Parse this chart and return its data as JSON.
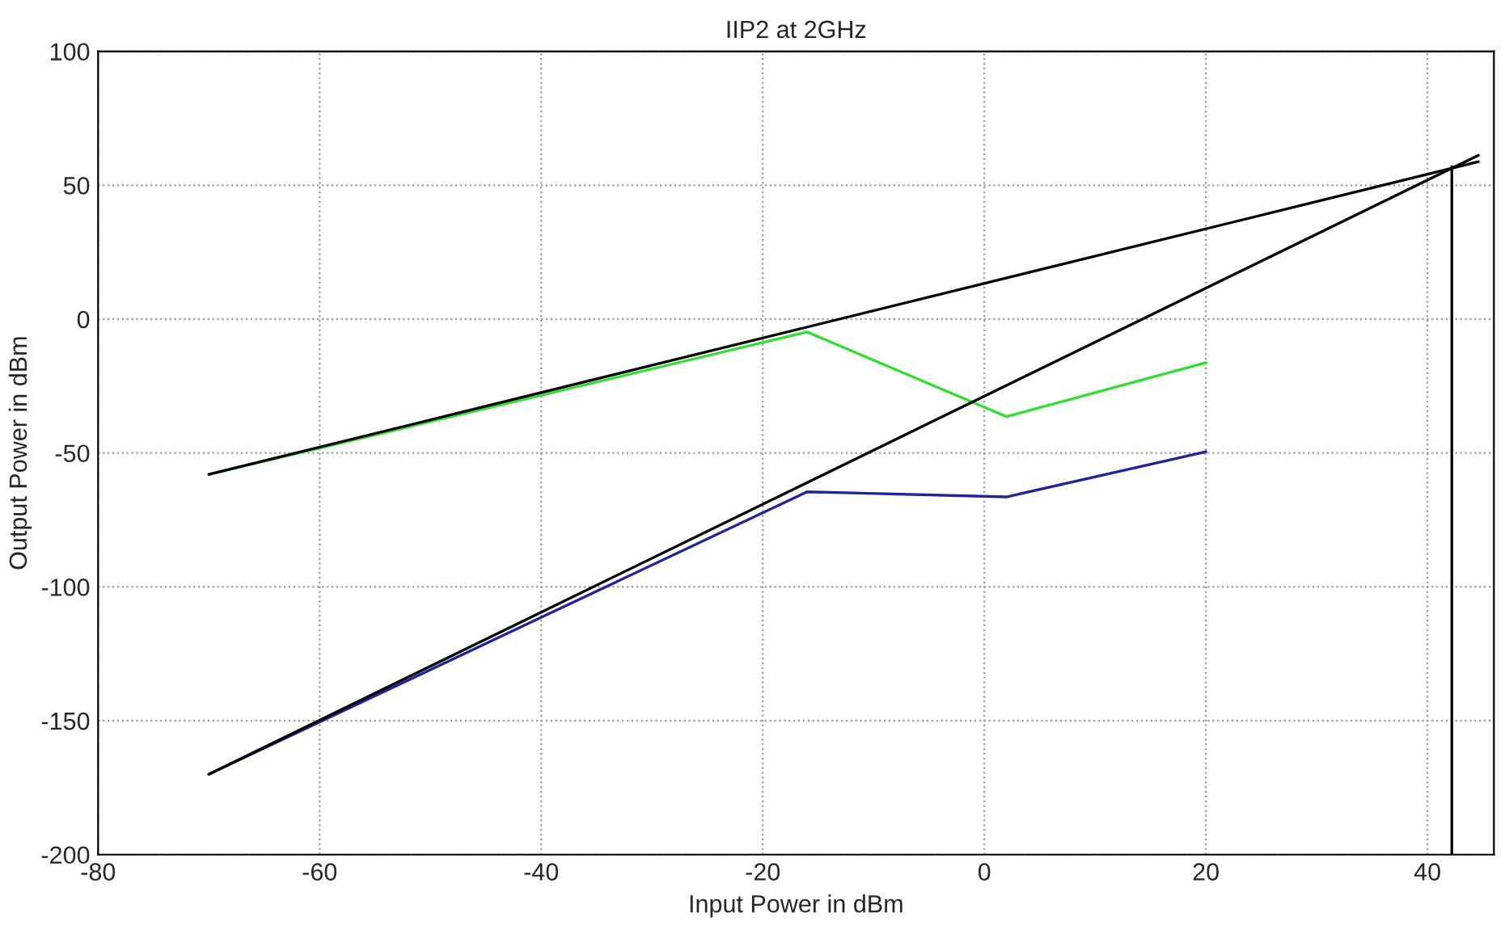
{
  "chart_data": {
    "type": "line",
    "title": "IIP2 at 2GHz",
    "xlabel": "Input Power in dBm",
    "ylabel": "Output Power in dBm",
    "xlim": [
      -80,
      46
    ],
    "xticks": [
      -80,
      -60,
      -40,
      -20,
      0,
      20,
      40
    ],
    "ylim": [
      -200,
      100
    ],
    "yticks": [
      -200,
      -150,
      -100,
      -50,
      0,
      50,
      100
    ],
    "grid": true,
    "legend": false,
    "line_style": "solid",
    "marker": "none",
    "series": [
      {
        "color": "#33dd33",
        "x": [
          -70,
          -16,
          2,
          20
        ],
        "values": [
          -58,
          -4.8,
          -36.4,
          -16.3
        ]
      },
      {
        "color": "#222299",
        "x": [
          -70,
          -16,
          2,
          20
        ],
        "values": [
          -170,
          -64.5,
          -66.4,
          -49.5
        ]
      },
      {
        "color": "#000000",
        "x": [
          -70,
          44.6
        ],
        "values": [
          -58,
          58.8
        ]
      },
      {
        "color": "#000000",
        "x": [
          -70,
          44.6
        ],
        "values": [
          -170,
          61.2
        ]
      },
      {
        "color": "#000000",
        "x": [
          42.2,
          42.2
        ],
        "values": [
          -200,
          57
        ]
      }
    ]
  }
}
